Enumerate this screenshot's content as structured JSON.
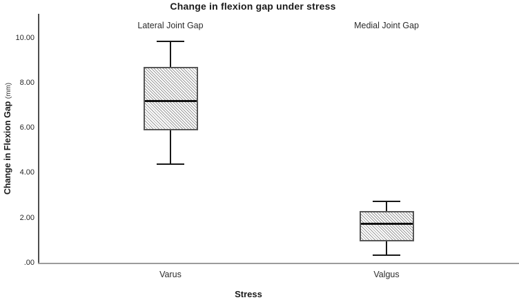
{
  "figure": {
    "title": "Change in flexion gap under stress",
    "y_axis": {
      "title": "Change in Flexion Gap",
      "unit": "(mm)"
    },
    "x_axis": {
      "title": "Stress"
    }
  },
  "chart_data": {
    "type": "boxplot",
    "title": "Change in flexion gap under stress",
    "xlabel": "Stress",
    "ylabel": "Change in Flexion Gap (mm)",
    "categories": [
      "Varus",
      "Valgus"
    ],
    "annotations": [
      "Lateral Joint Gap",
      "Medial Joint Gap"
    ],
    "ylim": [
      0,
      11.1
    ],
    "y_ticks": [
      0,
      2,
      4,
      6,
      8,
      10
    ],
    "y_tick_labels": [
      ".00",
      "2.00",
      "4.00",
      "6.00",
      "8.00",
      "10.00"
    ],
    "grid": false,
    "legend": "none",
    "series": [
      {
        "name": "Lateral Joint Gap",
        "category": "Varus",
        "min": 4.4,
        "q1": 5.9,
        "median": 7.2,
        "q3": 8.7,
        "max": 9.85
      },
      {
        "name": "Medial Joint Gap",
        "category": "Valgus",
        "min": 0.35,
        "q1": 0.95,
        "median": 1.75,
        "q3": 2.3,
        "max": 2.75
      }
    ],
    "style": {
      "box_fill": "diagonal-hatch",
      "hatch_color": "#9a9a9a",
      "box_border_color": "#565656",
      "whisker_color": "#161616",
      "left_axis_color": "#4d4d4d",
      "bottom_axis_color": "#9c9c9c",
      "background": "#ffffff"
    }
  }
}
